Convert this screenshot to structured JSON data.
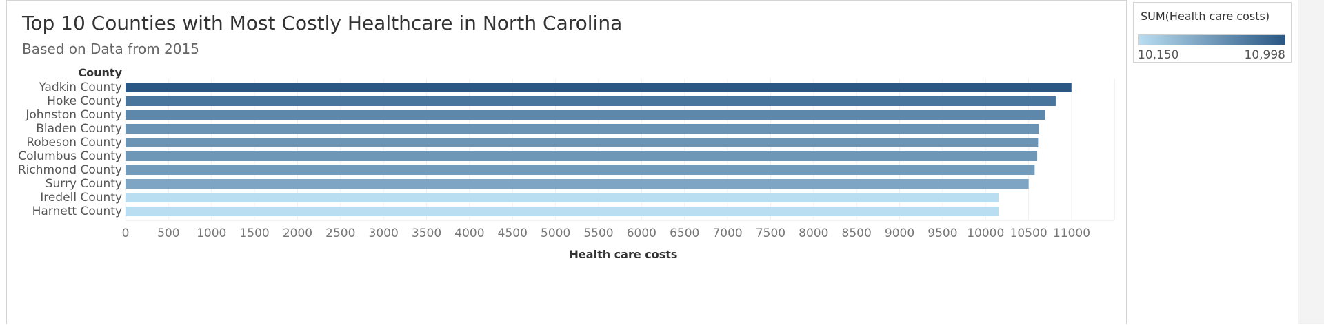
{
  "title": "Top 10 Counties with Most Costly Healthcare in North Carolina",
  "subtitle": "Based on Data from 2015",
  "legend": {
    "title": "SUM(Health care costs)",
    "min_label": "10,150",
    "max_label": "10,998",
    "color_low": "#b9ddf1",
    "color_high": "#2a5783"
  },
  "chart_data": {
    "type": "bar",
    "orientation": "horizontal",
    "row_header": "County",
    "categories": [
      "Yadkin County",
      "Hoke County",
      "Johnston County",
      "Bladen County",
      "Robeson County",
      "Columbus County",
      "Richmond County",
      "Surry County",
      "Iredell County",
      "Harnett County"
    ],
    "values": [
      10998,
      10815,
      10690,
      10618,
      10610,
      10600,
      10570,
      10500,
      10150,
      10150
    ],
    "xlabel": "Health care costs",
    "xlim": [
      0,
      11500
    ],
    "xticks": [
      "0",
      "500",
      "1000",
      "1500",
      "2000",
      "2500",
      "3000",
      "3500",
      "4000",
      "4500",
      "5000",
      "5500",
      "6000",
      "6500",
      "7000",
      "7500",
      "8000",
      "8500",
      "9000",
      "9500",
      "10000",
      "10500",
      "11000"
    ],
    "grid": true,
    "color_encoding": "sequential blue by value"
  }
}
